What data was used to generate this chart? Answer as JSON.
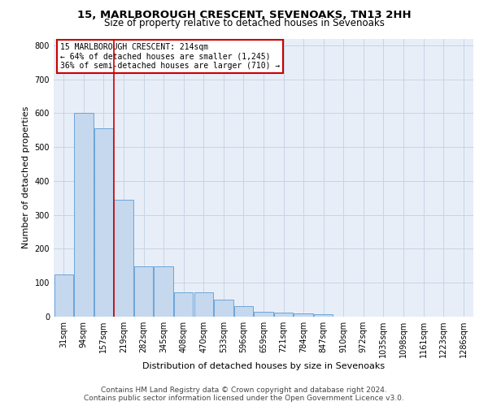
{
  "title1": "15, MARLBOROUGH CRESCENT, SEVENOAKS, TN13 2HH",
  "title2": "Size of property relative to detached houses in Sevenoaks",
  "xlabel": "Distribution of detached houses by size in Sevenoaks",
  "ylabel": "Number of detached properties",
  "footer1": "Contains HM Land Registry data © Crown copyright and database right 2024.",
  "footer2": "Contains public sector information licensed under the Open Government Licence v3.0.",
  "annotation_line1": "15 MARLBOROUGH CRESCENT: 214sqm",
  "annotation_line2": "← 64% of detached houses are smaller (1,245)",
  "annotation_line3": "36% of semi-detached houses are larger (710) →",
  "bar_labels": [
    "31sqm",
    "94sqm",
    "157sqm",
    "219sqm",
    "282sqm",
    "345sqm",
    "408sqm",
    "470sqm",
    "533sqm",
    "596sqm",
    "659sqm",
    "721sqm",
    "784sqm",
    "847sqm",
    "910sqm",
    "972sqm",
    "1035sqm",
    "1098sqm",
    "1161sqm",
    "1223sqm",
    "1286sqm"
  ],
  "bar_values": [
    125,
    600,
    555,
    345,
    148,
    148,
    72,
    72,
    50,
    30,
    14,
    12,
    10,
    8,
    0,
    0,
    0,
    0,
    0,
    0,
    0
  ],
  "bar_color": "#c5d8ee",
  "bar_edge_color": "#5b9bd5",
  "vline_color": "#cc0000",
  "vline_x": 2.5,
  "annotation_box_edge_color": "#cc0000",
  "annotation_box_face_color": "#ffffff",
  "ylim": [
    0,
    820
  ],
  "yticks": [
    0,
    100,
    200,
    300,
    400,
    500,
    600,
    700,
    800
  ],
  "grid_color": "#c8d4e4",
  "bg_color": "#e8eef8",
  "title1_fontsize": 9.5,
  "title2_fontsize": 8.5,
  "xlabel_fontsize": 8,
  "ylabel_fontsize": 8,
  "tick_fontsize": 7,
  "annotation_fontsize": 7,
  "footer_fontsize": 6.5
}
